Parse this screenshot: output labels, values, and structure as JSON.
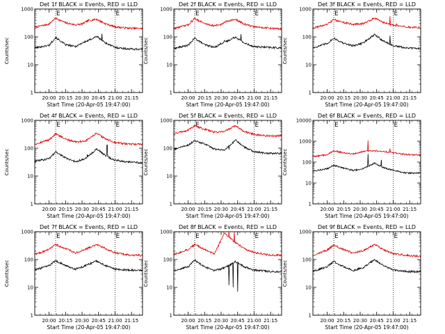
{
  "chart_data": {
    "type": "line",
    "y_scale": "log",
    "ylabel": "Counts/sec",
    "xlabel": "Start Time (20-Apr-05 19:47:00)",
    "y_ticks": [
      "1",
      "10",
      "100",
      "1000"
    ],
    "y_ticks_wide": [
      "1",
      "10",
      "100",
      "1000",
      "10000"
    ],
    "x_ticks": [
      "20:00",
      "20:15",
      "20:30",
      "20:45",
      "21:00",
      "21:15"
    ],
    "x_range": [
      "19:47",
      "21:25"
    ],
    "markers": [
      {
        "time": "20:06",
        "label": "E"
      },
      {
        "time": "21:00",
        "label": "E"
      }
    ],
    "series_colors": {
      "events": "#000000",
      "lld": "#dd0000"
    },
    "grid": false,
    "panels": [
      {
        "title": "Det 1f BLACK = Events, RED = LLD",
        "ylim": [
          1,
          1000
        ],
        "events": [
          [
            19.78,
            40
          ],
          [
            20.0,
            50
          ],
          [
            20.1,
            95
          ],
          [
            20.25,
            52
          ],
          [
            20.4,
            45
          ],
          [
            20.5,
            60
          ],
          [
            20.6,
            75
          ],
          [
            20.72,
            105
          ],
          [
            20.85,
            62
          ],
          [
            21.0,
            42
          ],
          [
            21.2,
            37
          ],
          [
            21.42,
            36
          ]
        ],
        "lld": [
          [
            19.78,
            220
          ],
          [
            20.0,
            290
          ],
          [
            20.1,
            470
          ],
          [
            20.25,
            320
          ],
          [
            20.4,
            270
          ],
          [
            20.5,
            290
          ],
          [
            20.6,
            390
          ],
          [
            20.72,
            430
          ],
          [
            20.85,
            300
          ],
          [
            21.0,
            230
          ],
          [
            21.2,
            205
          ],
          [
            21.42,
            200
          ]
        ],
        "spikes": [
          {
            "series": "events",
            "time": 20.6,
            "value": 75
          },
          {
            "series": "events",
            "time": 20.8,
            "value": 130
          },
          {
            "series": "lld",
            "time": 20.8,
            "value": 380
          }
        ]
      },
      {
        "title": "Det 2f BLACK = Events, RED = LLD",
        "ylim": [
          1,
          1000
        ],
        "events": [
          [
            19.78,
            38
          ],
          [
            20.0,
            50
          ],
          [
            20.1,
            90
          ],
          [
            20.25,
            52
          ],
          [
            20.4,
            42
          ],
          [
            20.5,
            58
          ],
          [
            20.6,
            72
          ],
          [
            20.72,
            100
          ],
          [
            20.85,
            60
          ],
          [
            21.0,
            45
          ],
          [
            21.2,
            42
          ],
          [
            21.42,
            40
          ]
        ],
        "lld": [
          [
            19.78,
            200
          ],
          [
            20.0,
            270
          ],
          [
            20.1,
            460
          ],
          [
            20.25,
            300
          ],
          [
            20.4,
            250
          ],
          [
            20.5,
            280
          ],
          [
            20.6,
            380
          ],
          [
            20.72,
            420
          ],
          [
            20.85,
            290
          ],
          [
            21.0,
            230
          ],
          [
            21.2,
            210
          ],
          [
            21.42,
            190
          ]
        ],
        "spikes": [
          {
            "series": "events",
            "time": 20.55,
            "value": 75
          },
          {
            "series": "events",
            "time": 20.8,
            "value": 125
          },
          {
            "series": "lld",
            "time": 20.55,
            "value": 330
          }
        ]
      },
      {
        "title": "Det 3f BLACK = Events, RED = LLD",
        "ylim": [
          1,
          1000
        ],
        "events": [
          [
            19.78,
            40
          ],
          [
            20.0,
            58
          ],
          [
            20.1,
            90
          ],
          [
            20.25,
            58
          ],
          [
            20.4,
            48
          ],
          [
            20.55,
            62
          ],
          [
            20.72,
            120
          ],
          [
            20.85,
            72
          ],
          [
            21.0,
            48
          ],
          [
            21.2,
            40
          ],
          [
            21.42,
            38
          ]
        ],
        "lld": [
          [
            19.78,
            210
          ],
          [
            20.0,
            280
          ],
          [
            20.1,
            420
          ],
          [
            20.25,
            330
          ],
          [
            20.4,
            280
          ],
          [
            20.55,
            300
          ],
          [
            20.72,
            480
          ],
          [
            20.85,
            330
          ],
          [
            21.0,
            260
          ],
          [
            21.2,
            225
          ],
          [
            21.42,
            215
          ]
        ],
        "spikes": [
          {
            "series": "events",
            "time": 20.95,
            "value": 110
          },
          {
            "series": "lld",
            "time": 20.95,
            "value": 560
          },
          {
            "series": "lld",
            "time": 21.05,
            "value": 300
          }
        ]
      },
      {
        "title": "Det 4f BLACK = Events, RED = LLD",
        "ylim": [
          1,
          1000
        ],
        "events": [
          [
            19.78,
            34
          ],
          [
            20.0,
            42
          ],
          [
            20.1,
            75
          ],
          [
            20.25,
            45
          ],
          [
            20.4,
            33
          ],
          [
            20.55,
            42
          ],
          [
            20.72,
            95
          ],
          [
            20.85,
            55
          ],
          [
            21.0,
            37
          ],
          [
            21.2,
            32
          ],
          [
            21.42,
            30
          ]
        ],
        "lld": [
          [
            19.78,
            140
          ],
          [
            20.0,
            200
          ],
          [
            20.1,
            330
          ],
          [
            20.25,
            210
          ],
          [
            20.4,
            170
          ],
          [
            20.55,
            180
          ],
          [
            20.72,
            340
          ],
          [
            20.85,
            220
          ],
          [
            21.0,
            160
          ],
          [
            21.2,
            140
          ],
          [
            21.42,
            140
          ]
        ],
        "spikes": [
          {
            "series": "events",
            "time": 20.58,
            "value": 60
          },
          {
            "series": "events",
            "time": 20.88,
            "value": 130
          }
        ]
      },
      {
        "title": "Det 5f BLACK = Events, RED = LLD",
        "ylim": [
          1,
          1000
        ],
        "events": [
          [
            19.78,
            90
          ],
          [
            20.0,
            130
          ],
          [
            20.1,
            190
          ],
          [
            20.25,
            140
          ],
          [
            20.4,
            95
          ],
          [
            20.55,
            85
          ],
          [
            20.72,
            200
          ],
          [
            20.85,
            110
          ],
          [
            21.0,
            75
          ],
          [
            21.2,
            65
          ],
          [
            21.42,
            65
          ]
        ],
        "lld": [
          [
            19.78,
            330
          ],
          [
            20.0,
            450
          ],
          [
            20.1,
            640
          ],
          [
            20.25,
            480
          ],
          [
            20.4,
            380
          ],
          [
            20.55,
            400
          ],
          [
            20.72,
            650
          ],
          [
            20.85,
            400
          ],
          [
            21.0,
            310
          ],
          [
            21.2,
            280
          ],
          [
            21.42,
            280
          ]
        ],
        "spikes": [
          {
            "series": "events",
            "time": 20.62,
            "value": 90
          }
        ]
      },
      {
        "title": "Det 6f BLACK = Events, RED = LLD",
        "ylim": [
          1,
          10000
        ],
        "events": [
          [
            19.78,
            38
          ],
          [
            20.0,
            48
          ],
          [
            20.1,
            70
          ],
          [
            20.25,
            52
          ],
          [
            20.4,
            40
          ],
          [
            20.55,
            50
          ],
          [
            20.72,
            90
          ],
          [
            20.85,
            55
          ],
          [
            21.0,
            40
          ],
          [
            21.2,
            30
          ],
          [
            21.42,
            30
          ]
        ],
        "lld": [
          [
            19.78,
            180
          ],
          [
            20.0,
            230
          ],
          [
            20.1,
            350
          ],
          [
            20.25,
            280
          ],
          [
            20.4,
            250
          ],
          [
            20.55,
            330
          ],
          [
            20.72,
            350
          ],
          [
            20.85,
            330
          ],
          [
            21.0,
            280
          ],
          [
            21.2,
            230
          ],
          [
            21.42,
            220
          ]
        ],
        "spikes": [
          {
            "series": "events",
            "time": 20.62,
            "value": 250
          },
          {
            "series": "events",
            "time": 20.82,
            "value": 130
          },
          {
            "series": "lld",
            "time": 20.62,
            "value": 1100
          },
          {
            "series": "lld",
            "time": 20.95,
            "value": 450
          }
        ]
      },
      {
        "title": "Det 7f BLACK = Events, RED = LLD",
        "ylim": [
          1,
          1000
        ],
        "events": [
          [
            19.78,
            42
          ],
          [
            20.0,
            60
          ],
          [
            20.1,
            92
          ],
          [
            20.25,
            60
          ],
          [
            20.4,
            45
          ],
          [
            20.55,
            60
          ],
          [
            20.72,
            90
          ],
          [
            20.85,
            62
          ],
          [
            21.0,
            45
          ],
          [
            21.2,
            42
          ],
          [
            21.42,
            40
          ]
        ],
        "lld": [
          [
            19.78,
            150
          ],
          [
            20.0,
            230
          ],
          [
            20.1,
            350
          ],
          [
            20.25,
            250
          ],
          [
            20.4,
            175
          ],
          [
            20.55,
            230
          ],
          [
            20.72,
            350
          ],
          [
            20.85,
            250
          ],
          [
            21.0,
            175
          ],
          [
            21.2,
            145
          ],
          [
            21.42,
            140
          ]
        ],
        "spikes": []
      },
      {
        "title": "Det 8f BLACK = Events, RED = LLD",
        "ylim": [
          1,
          1000
        ],
        "events": [
          [
            19.78,
            40
          ],
          [
            20.0,
            55
          ],
          [
            20.1,
            95
          ],
          [
            20.25,
            55
          ],
          [
            20.4,
            40
          ],
          [
            20.55,
            50
          ],
          [
            20.72,
            85
          ],
          [
            20.85,
            55
          ],
          [
            21.0,
            42
          ],
          [
            21.2,
            38
          ],
          [
            21.42,
            35
          ]
        ],
        "lld": [
          [
            19.78,
            150
          ],
          [
            20.0,
            230
          ],
          [
            20.1,
            350
          ],
          [
            20.25,
            230
          ],
          [
            20.4,
            160
          ],
          [
            20.55,
            900
          ],
          [
            20.72,
            400
          ],
          [
            20.85,
            250
          ],
          [
            21.0,
            180
          ],
          [
            21.2,
            150
          ],
          [
            21.42,
            140
          ]
        ],
        "spikes": [
          {
            "series": "events",
            "time": 20.62,
            "value": 12
          },
          {
            "series": "events",
            "time": 20.68,
            "value": 10
          },
          {
            "series": "events",
            "time": 20.75,
            "value": 7
          },
          {
            "series": "lld",
            "time": 20.62,
            "value": 1000
          },
          {
            "series": "lld",
            "time": 20.7,
            "value": 1000
          }
        ]
      },
      {
        "title": "Det 9f BLACK = Events, RED = LLD",
        "ylim": [
          1,
          1000
        ],
        "events": [
          [
            19.78,
            38
          ],
          [
            20.0,
            55
          ],
          [
            20.1,
            85
          ],
          [
            20.25,
            55
          ],
          [
            20.4,
            40
          ],
          [
            20.55,
            52
          ],
          [
            20.72,
            100
          ],
          [
            20.85,
            60
          ],
          [
            21.0,
            42
          ],
          [
            21.2,
            38
          ],
          [
            21.42,
            36
          ]
        ],
        "lld": [
          [
            19.78,
            140
          ],
          [
            20.0,
            220
          ],
          [
            20.1,
            330
          ],
          [
            20.25,
            230
          ],
          [
            20.4,
            170
          ],
          [
            20.55,
            210
          ],
          [
            20.72,
            350
          ],
          [
            20.85,
            230
          ],
          [
            21.0,
            165
          ],
          [
            21.2,
            140
          ],
          [
            21.42,
            130
          ]
        ],
        "spikes": []
      }
    ]
  }
}
